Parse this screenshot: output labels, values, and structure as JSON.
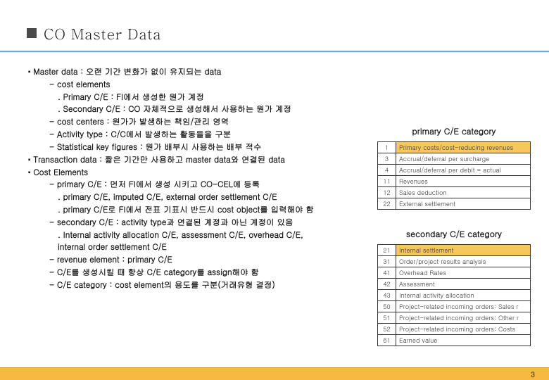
{
  "title": "CO Master Data",
  "lines": [
    {
      "cls": "l1 sq",
      "t": "Master data : 오랜 기간 변화가 없이 유지되는 data"
    },
    {
      "cls": "l2",
      "t": "- cost elements"
    },
    {
      "cls": "l3",
      "t": ". Primary C/E : FI에서 생성한 원가 계정"
    },
    {
      "cls": "l3",
      "t": ". Secondary C/E : CO 자체적으로 생성해서 사용하는 원가 계정"
    },
    {
      "cls": "l2",
      "t": "- cost centers : 원가가 발생하는 책임/관리 영역"
    },
    {
      "cls": "l2",
      "t": "- Activity type : C/C에서 발생하는 활동들을 구분"
    },
    {
      "cls": "l2",
      "t": "- Statistical key figures : 원가 배부시 사용하는  배부 적수"
    },
    {
      "cls": "l1 sq",
      "t": "Transaction data : 짧은 기간만 사용하고 master data와 연결된 data"
    },
    {
      "cls": "l1 sq",
      "t": "Cost Elements"
    },
    {
      "cls": "l2",
      "t": "- primary C/E : 먼저 FI에서 생성 시키고 CO-CEL에 등록"
    },
    {
      "cls": "l3",
      "t": ". primary C/E, imputed C/E, external order settlement C/E"
    },
    {
      "cls": "l3",
      "t": ". primary C/E로 FI에서 전표 기표시 반드시 cost object를 입력해야 함"
    },
    {
      "cls": "l2",
      "t": "- secondary C/E : activity type과 연결된 계정과 아닌 계정이 있음"
    },
    {
      "cls": "l3",
      "t": ". Internal activity allocation C/E, assessment C/E, overhead C/E,"
    },
    {
      "cls": "l3",
      "t": "  internal order settlement C/E"
    },
    {
      "cls": "l2",
      "t": "- revenue element : primary C/E"
    },
    {
      "cls": "l2",
      "t": "- C/E를 생성시킬 때 항상 C/E category를 assign해야 함"
    },
    {
      "cls": "l2",
      "t": "- C/E category : cost element의 용도를 구분(거래유형 결정)"
    }
  ],
  "primary": {
    "title": "primary C/E category",
    "header_bg": "#f7c65c",
    "cell_bg": "#ffffff",
    "border": "#333333",
    "rows": [
      {
        "code": "1",
        "label": "Primary costs/cost-reducing revenues",
        "hdr": true
      },
      {
        "code": "3",
        "label": "Accrual/deferral per surcharge"
      },
      {
        "code": "4",
        "label": "Accrual/deferral per debit = actual"
      },
      {
        "code": "11",
        "label": "Revenues"
      },
      {
        "code": "12",
        "label": "Sales deduction"
      },
      {
        "code": "22",
        "label": "External settlement"
      }
    ]
  },
  "secondary": {
    "title": "secondary C/E category",
    "header_bg": "#f7c65c",
    "rows": [
      {
        "code": "21",
        "label": "Internal settlement",
        "hdr": true
      },
      {
        "code": "31",
        "label": "Order/project results analysis"
      },
      {
        "code": "41",
        "label": "Overhead Rates"
      },
      {
        "code": "42",
        "label": "Assessment"
      },
      {
        "code": "43",
        "label": "Internal activity allocation"
      },
      {
        "code": "50",
        "label": "Project-related incoming orders: Sales r"
      },
      {
        "code": "51",
        "label": "Project-related incoming orders: Other r"
      },
      {
        "code": "52",
        "label": "Project-related incoming orders: Costs"
      },
      {
        "code": "61",
        "label": "Earned value"
      }
    ]
  },
  "page_number": "3"
}
